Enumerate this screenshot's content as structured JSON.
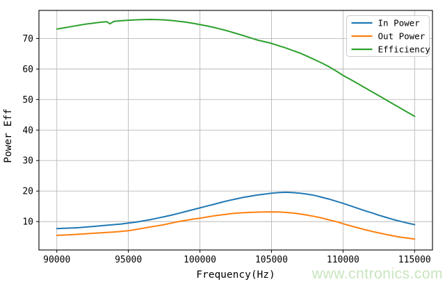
{
  "watermark": {
    "text": "www.cntronics.com",
    "color": "#c7e5bd"
  },
  "colors": {
    "grid": "#b8b8b8",
    "spine": "#000000",
    "text": "#000000",
    "legend_border": "#cccccc",
    "legend_background": "#ffffff"
  },
  "chart_data": {
    "type": "line",
    "title": "",
    "xlabel": "Frequency(Hz)",
    "ylabel": "Power Eff",
    "xlim": [
      88750,
      116250
    ],
    "ylim": [
      0.7,
      79.2
    ],
    "xticks": [
      90000,
      95000,
      100000,
      105000,
      110000,
      115000
    ],
    "xtick_labels": [
      "90000",
      "95000",
      "100000",
      "105000",
      "110000",
      "115000"
    ],
    "yticks": [
      10,
      20,
      30,
      40,
      50,
      60,
      70
    ],
    "ytick_labels": [
      "10",
      "20",
      "30",
      "40",
      "50",
      "60",
      "70"
    ],
    "grid": true,
    "legend_position": "upper right",
    "series": [
      {
        "name": "In Power",
        "color": "#1f77b4",
        "x": [
          90000,
          90500,
          91000,
          91500,
          92000,
          92500,
          93000,
          93500,
          94000,
          94500,
          95000,
          95500,
          96000,
          96500,
          97000,
          97500,
          98000,
          98500,
          99000,
          99500,
          100000,
          100500,
          101000,
          101500,
          102000,
          102500,
          103000,
          103500,
          104000,
          104500,
          105000,
          105500,
          106000,
          106500,
          107000,
          107500,
          108000,
          108500,
          109000,
          109500,
          110000,
          110500,
          111000,
          111500,
          112000,
          112500,
          113000,
          113500,
          114000,
          114500,
          115000
        ],
        "y": [
          7.7,
          7.8,
          7.9,
          8.0,
          8.2,
          8.4,
          8.6,
          8.8,
          9.0,
          9.2,
          9.5,
          9.8,
          10.2,
          10.6,
          11.1,
          11.6,
          12.1,
          12.7,
          13.3,
          13.9,
          14.5,
          15.1,
          15.7,
          16.3,
          16.9,
          17.4,
          17.9,
          18.3,
          18.7,
          19.0,
          19.3,
          19.5,
          19.6,
          19.5,
          19.3,
          19.0,
          18.6,
          18.0,
          17.4,
          16.7,
          16.0,
          15.2,
          14.4,
          13.6,
          12.9,
          12.1,
          11.4,
          10.7,
          10.1,
          9.5,
          9.0
        ]
      },
      {
        "name": "Out Power",
        "color": "#ff7f0e",
        "x": [
          90000,
          90500,
          91000,
          91500,
          92000,
          92500,
          93000,
          93500,
          94000,
          94500,
          95000,
          95500,
          96000,
          96500,
          97000,
          97500,
          98000,
          98500,
          99000,
          99500,
          100000,
          100500,
          101000,
          101500,
          102000,
          102500,
          103000,
          103500,
          104000,
          104500,
          105000,
          105500,
          106000,
          106500,
          107000,
          107500,
          108000,
          108500,
          109000,
          109500,
          110000,
          110500,
          111000,
          111500,
          112000,
          112500,
          113000,
          113500,
          114000,
          114500,
          115000
        ],
        "y": [
          5.5,
          5.6,
          5.7,
          5.85,
          6.0,
          6.15,
          6.3,
          6.45,
          6.6,
          6.8,
          7.0,
          7.4,
          7.8,
          8.2,
          8.6,
          9.0,
          9.5,
          10.0,
          10.4,
          10.8,
          11.1,
          11.5,
          11.9,
          12.2,
          12.5,
          12.75,
          12.9,
          13.0,
          13.1,
          13.15,
          13.2,
          13.15,
          13.0,
          12.8,
          12.5,
          12.1,
          11.7,
          11.2,
          10.6,
          10.0,
          9.3,
          8.65,
          8.0,
          7.4,
          6.8,
          6.3,
          5.8,
          5.35,
          4.9,
          4.6,
          4.3
        ]
      },
      {
        "name": "Efficiency",
        "color": "#2ca02c",
        "x": [
          90000,
          90500,
          91000,
          91500,
          92000,
          92500,
          93000,
          93500,
          93700,
          94000,
          94500,
          95000,
          95500,
          96000,
          96500,
          97000,
          97500,
          98000,
          98500,
          99000,
          99500,
          100000,
          100500,
          101000,
          101500,
          102000,
          102500,
          103000,
          103500,
          104000,
          104500,
          105000,
          105500,
          106000,
          106500,
          107000,
          107500,
          108000,
          108500,
          109000,
          109500,
          110000,
          110500,
          111000,
          111500,
          112000,
          112500,
          113000,
          113500,
          114000,
          114500,
          115000
        ],
        "y": [
          73.1,
          73.5,
          73.9,
          74.3,
          74.7,
          75.0,
          75.3,
          75.5,
          74.8,
          75.6,
          75.8,
          76.0,
          76.1,
          76.2,
          76.25,
          76.2,
          76.1,
          75.9,
          75.65,
          75.35,
          75.0,
          74.55,
          74.1,
          73.6,
          73.0,
          72.4,
          71.7,
          71.0,
          70.25,
          69.5,
          68.95,
          68.4,
          67.65,
          66.9,
          66.05,
          65.2,
          64.15,
          63.1,
          62.0,
          60.8,
          59.4,
          57.9,
          56.6,
          55.3,
          53.95,
          52.6,
          51.25,
          49.9,
          48.55,
          47.2,
          45.85,
          44.5
        ]
      }
    ]
  }
}
